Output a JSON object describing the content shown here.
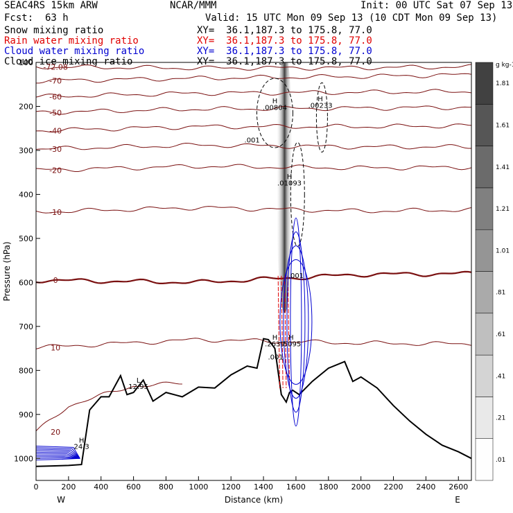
{
  "header": {
    "model": "SEAC4RS 15km ARW",
    "org": "NCAR/MMM",
    "init": "Init: 00 UTC Sat 07 Sep 13",
    "fcst_label": "Fcst:",
    "fcst_value": "63 h",
    "valid": "Valid: 15 UTC Mon 09 Sep 13 (10 CDT Mon 09 Sep 13)"
  },
  "legend": [
    {
      "name": "Snow mixing ratio",
      "xy": "XY=  36.1,187.3 to 175.8, 77.0",
      "color": "#000000"
    },
    {
      "name": "Rain water mixing ratio",
      "xy": "XY=  36.1,187.3 to 175.8, 77.0",
      "color": "#e00000"
    },
    {
      "name": "Cloud water mixing ratio",
      "xy": "XY=  36.1,187.3 to 175.8, 77.0",
      "color": "#0000d0"
    },
    {
      "name": "Cloud ice mixing ratio",
      "xy": "XY=  36.1,187.3 to 175.8, 77.0",
      "color": "#000000"
    }
  ],
  "chart_data": {
    "type": "cross-section contour",
    "xlabel": "Distance (km)",
    "ylabel": "Pressure (hPa)",
    "xlim": [
      0,
      2680
    ],
    "ylim": [
      1050,
      100
    ],
    "x_ticks": [
      0,
      200,
      400,
      600,
      800,
      1000,
      1200,
      1400,
      1600,
      1800,
      2000,
      2200,
      2400,
      2600
    ],
    "y_ticks": [
      200,
      300,
      400,
      500,
      600,
      700,
      800,
      900,
      1000
    ],
    "y_tick_top": "100",
    "direction_labels": {
      "west": "W",
      "east": "E"
    },
    "colorbar": {
      "unit": "g kg-1",
      "levels": [
        ".01",
        ".21",
        ".41",
        ".61",
        ".81",
        "1.01",
        "1.21",
        "1.41",
        "1.61",
        "1.81"
      ],
      "values": [
        0.01,
        0.21,
        0.41,
        0.61,
        0.81,
        1.01,
        1.21,
        1.41,
        1.61,
        1.81
      ]
    },
    "temperature_contours": [
      {
        "label": "-72.08",
        "x": [
          0,
          1000,
          2000,
          2680
        ],
        "p": [
          110,
          113,
          112,
          110
        ]
      },
      {
        "label": "-70",
        "x": [
          0,
          1000,
          2000,
          2680
        ],
        "p": [
          142,
          136,
          132,
          128
        ]
      },
      {
        "label": "-60",
        "x": [
          0,
          1000,
          2000,
          2680
        ],
        "p": [
          178,
          170,
          168,
          166
        ]
      },
      {
        "label": "-50",
        "x": [
          0,
          1000,
          2000,
          2680
        ],
        "p": [
          214,
          206,
          204,
          202
        ]
      },
      {
        "label": "-40",
        "x": [
          0,
          1000,
          2000,
          2680
        ],
        "p": [
          255,
          246,
          246,
          244
        ]
      },
      {
        "label": "-30",
        "x": [
          0,
          1000,
          2000,
          2680
        ],
        "p": [
          297,
          288,
          292,
          292
        ]
      },
      {
        "label": "-20",
        "x": [
          0,
          1000,
          2000,
          2680
        ],
        "p": [
          345,
          336,
          340,
          338
        ]
      },
      {
        "label": "-10",
        "x": [
          0,
          1000,
          2000,
          2680
        ],
        "p": [
          440,
          430,
          438,
          435
        ]
      },
      {
        "label": "0",
        "x": [
          0,
          1000,
          2000,
          2680
        ],
        "p": [
          595,
          600,
          582,
          580
        ]
      },
      {
        "label": "10",
        "x": [
          0,
          1000,
          2000,
          2680
        ],
        "p": [
          748,
          730,
          738,
          740
        ]
      },
      {
        "label": "20",
        "x": [
          0,
          200,
          600,
          900
        ],
        "p": [
          940,
          880,
          835,
          830
        ]
      }
    ],
    "terrain": {
      "x": [
        0,
        100,
        200,
        280,
        330,
        400,
        450,
        520,
        560,
        600,
        660,
        720,
        800,
        900,
        1000,
        1100,
        1200,
        1300,
        1360,
        1400,
        1430,
        1470,
        1510,
        1540,
        1560,
        1580,
        1620,
        1700,
        1800,
        1900,
        1950,
        2000,
        2100,
        2200,
        2300,
        2400,
        2500,
        2600,
        2680
      ],
      "p": [
        1018,
        1017,
        1016,
        1014,
        890,
        860,
        860,
        812,
        855,
        850,
        822,
        870,
        850,
        860,
        838,
        840,
        810,
        790,
        795,
        728,
        730,
        750,
        855,
        872,
        850,
        845,
        855,
        825,
        795,
        780,
        825,
        815,
        840,
        880,
        915,
        945,
        970,
        985,
        1000
      ]
    },
    "annotations": [
      {
        "text": "H",
        "x": 1470,
        "p": 193
      },
      {
        "text": ".00804",
        "x": 1470,
        "p": 208
      },
      {
        "text": "H",
        "x": 1750,
        "p": 188
      },
      {
        "text": ".00233",
        "x": 1750,
        "p": 203
      },
      {
        "text": ".001",
        "x": 1330,
        "p": 282
      },
      {
        "text": "H",
        "x": 1560,
        "p": 365
      },
      {
        "text": ".01093",
        "x": 1560,
        "p": 380
      },
      {
        "text": ".001",
        "x": 1600,
        "p": 590
      },
      {
        "text": "H",
        "x": 1470,
        "p": 730
      },
      {
        "text": ".2639",
        "x": 1470,
        "p": 745
      },
      {
        "text": "H",
        "x": 1570,
        "p": 730
      },
      {
        "text": ".5095",
        "x": 1570,
        "p": 745
      },
      {
        "text": ".001",
        "x": 1475,
        "p": 775
      },
      {
        "text": "L",
        "x": 630,
        "p": 828
      },
      {
        "text": "12.95",
        "x": 630,
        "p": 842
      },
      {
        "text": "H",
        "x": 280,
        "p": 964
      },
      {
        "text": "24.3",
        "x": 280,
        "p": 978
      }
    ]
  }
}
